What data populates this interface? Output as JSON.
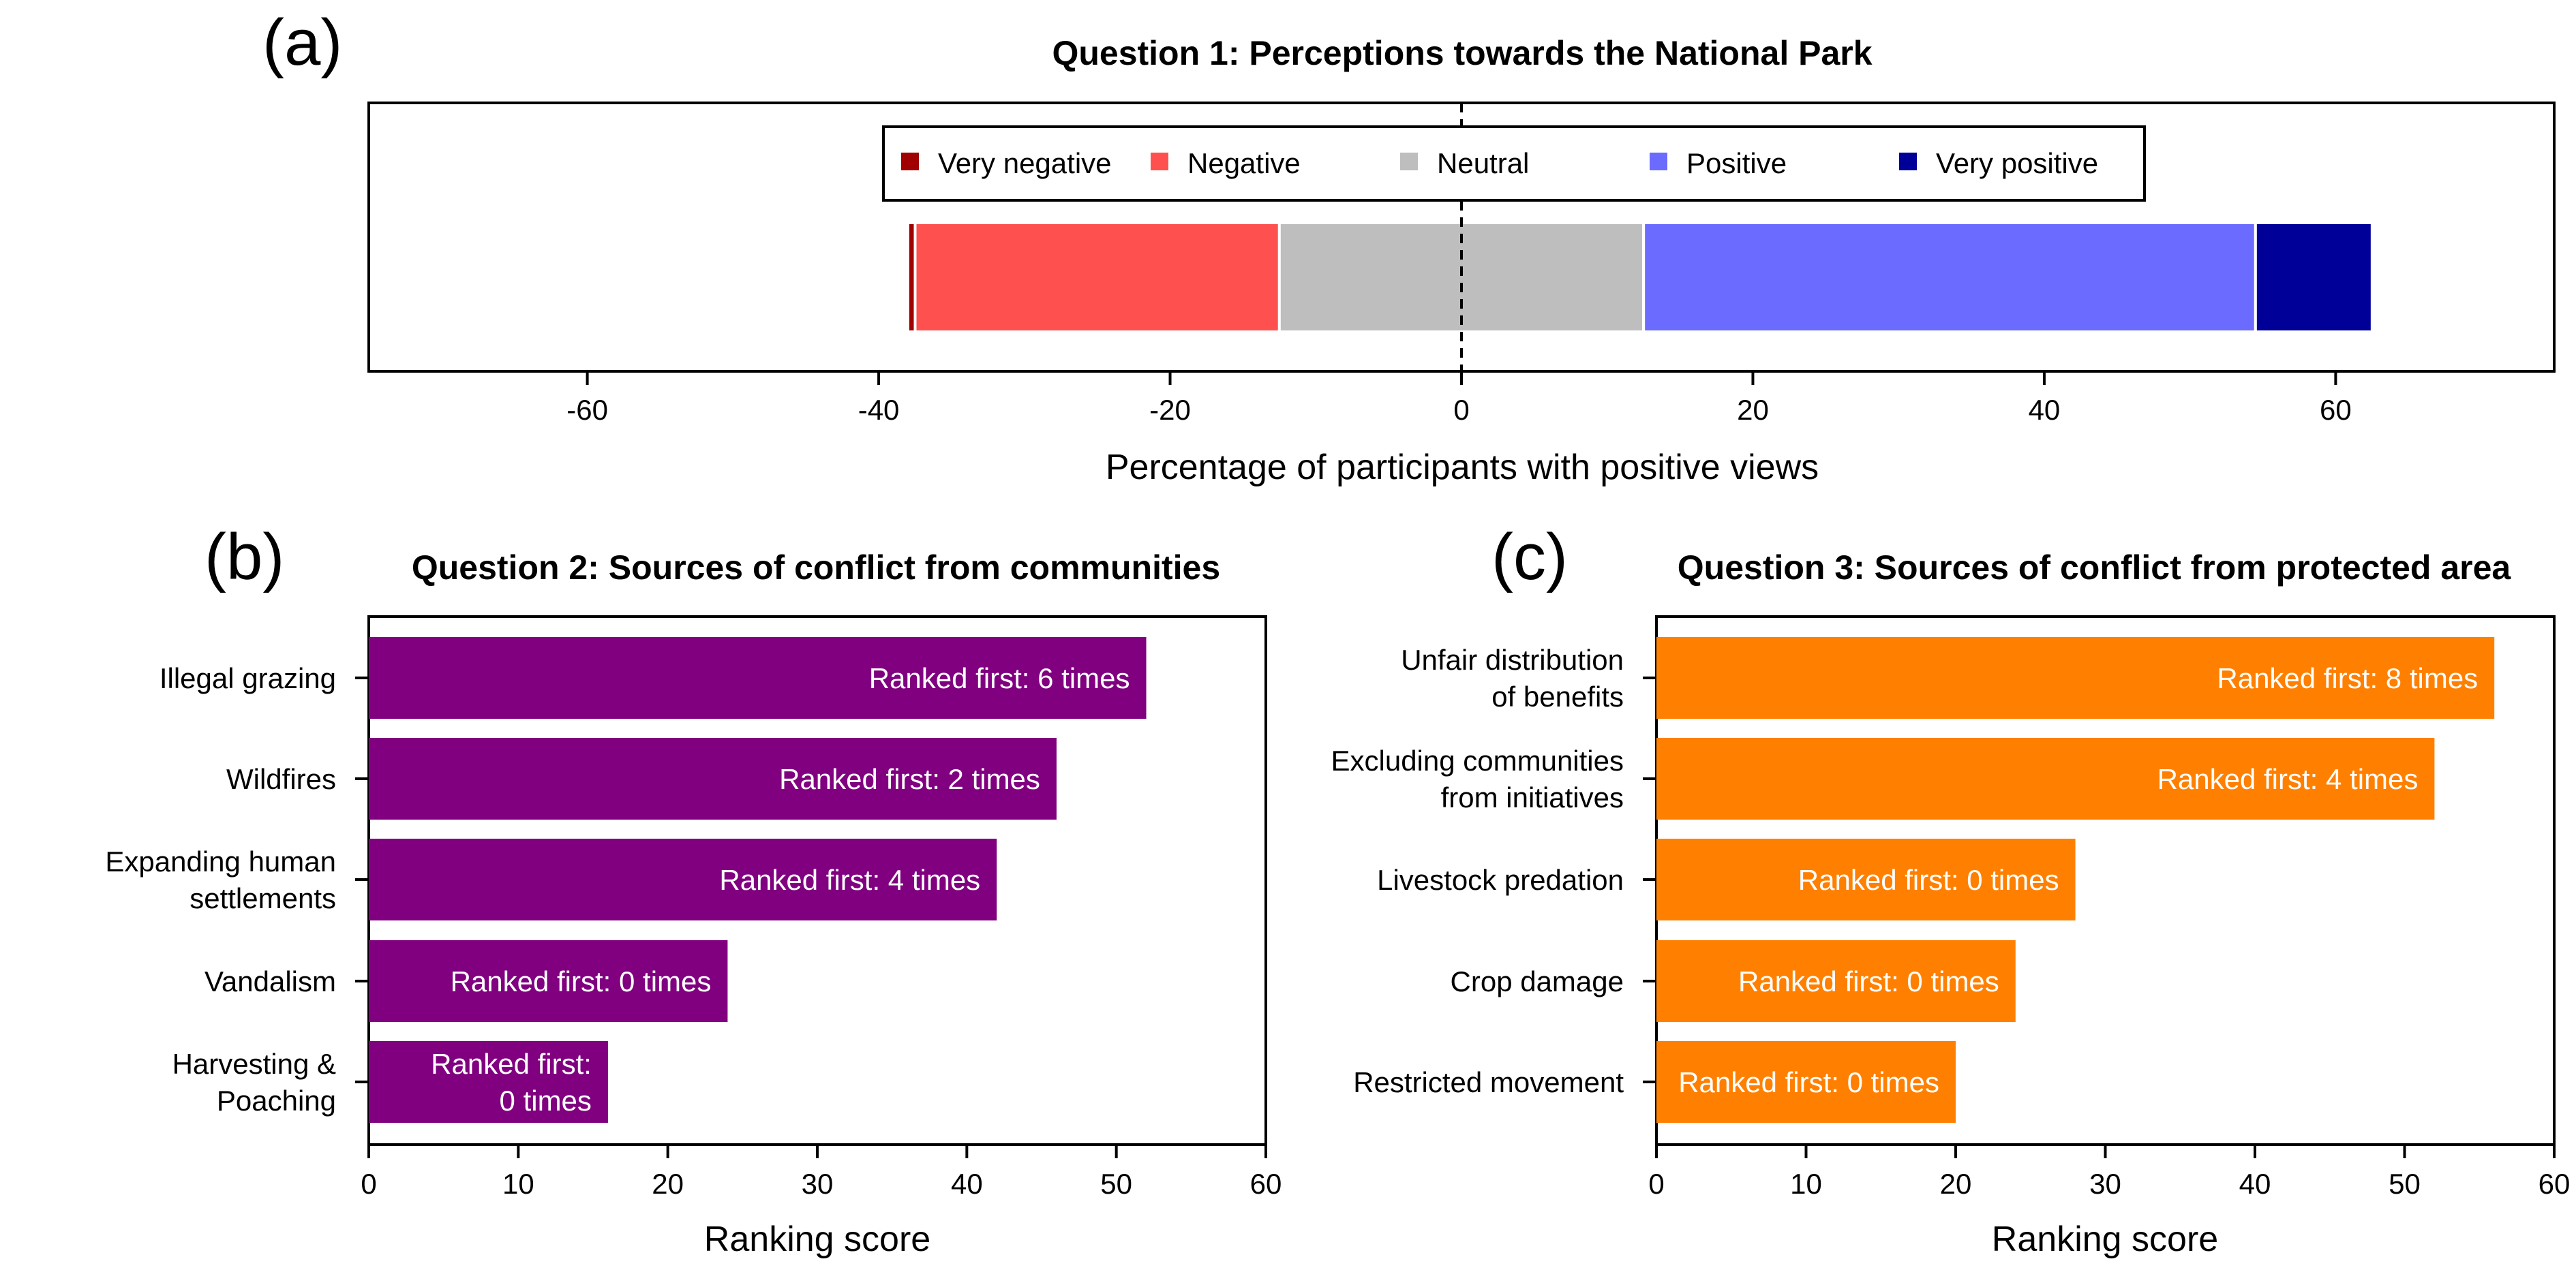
{
  "chart_data": [
    {
      "panel": "(a)",
      "type": "bar",
      "orientation": "horizontal",
      "stacked": "diverging",
      "title": "Question 1: Perceptions towards the National Park",
      "xlabel": "Percentage of participants with positive views",
      "ylabel": "",
      "xlim": [
        -75,
        75
      ],
      "xticks": [
        -60,
        -40,
        -20,
        0,
        20,
        40,
        60
      ],
      "reference_line": {
        "x": 0,
        "style": "dashed"
      },
      "legend": {
        "position": "top-center"
      },
      "series": [
        {
          "name": "Very negative",
          "color": "#a00000",
          "start": -38.0,
          "end": -37.5
        },
        {
          "name": "Negative",
          "color": "#ff5050",
          "start": -37.5,
          "end": -12.5
        },
        {
          "name": "Neutral",
          "color": "#bebebe",
          "start": -12.5,
          "end": 12.5
        },
        {
          "name": "Positive",
          "color": "#6b6bff",
          "start": 12.5,
          "end": 54.5
        },
        {
          "name": "Very positive",
          "color": "#000099",
          "start": 54.5,
          "end": 62.5
        }
      ]
    },
    {
      "panel": "(b)",
      "type": "bar",
      "orientation": "horizontal",
      "title": "Question 2: Sources of conflict from communities",
      "xlabel": "Ranking score",
      "ylabel": "",
      "xlim": [
        0,
        60
      ],
      "xticks": [
        0,
        10,
        20,
        30,
        40,
        50,
        60
      ],
      "color": "#800080",
      "bars": [
        {
          "category": [
            "Illegal grazing"
          ],
          "value": 52,
          "label": [
            "Ranked first: 6 times"
          ]
        },
        {
          "category": [
            "Wildfires"
          ],
          "value": 46,
          "label": [
            "Ranked first: 2 times"
          ]
        },
        {
          "category": [
            "Expanding human",
            "settlements"
          ],
          "value": 42,
          "label": [
            "Ranked first: 4 times"
          ]
        },
        {
          "category": [
            "Vandalism"
          ],
          "value": 24,
          "label": [
            "Ranked first: 0 times"
          ]
        },
        {
          "category": [
            "Harvesting &",
            "Poaching"
          ],
          "value": 16,
          "label": [
            "Ranked first:",
            "0 times"
          ]
        }
      ]
    },
    {
      "panel": "(c)",
      "type": "bar",
      "orientation": "horizontal",
      "title": "Question 3: Sources of conflict from protected area",
      "xlabel": "Ranking score",
      "ylabel": "",
      "xlim": [
        0,
        60
      ],
      "xticks": [
        0,
        10,
        20,
        30,
        40,
        50,
        60
      ],
      "color": "#ff8000",
      "bars": [
        {
          "category": [
            "Unfair distribution",
            "of benefits"
          ],
          "value": 56,
          "label": [
            "Ranked first: 8 times"
          ]
        },
        {
          "category": [
            "Excluding communities",
            "from initiatives"
          ],
          "value": 52,
          "label": [
            "Ranked first: 4 times"
          ]
        },
        {
          "category": [
            "Livestock predation"
          ],
          "value": 28,
          "label": [
            "Ranked first: 0 times"
          ]
        },
        {
          "category": [
            "Crop damage"
          ],
          "value": 24,
          "label": [
            "Ranked first: 0 times"
          ]
        },
        {
          "category": [
            "Restricted movement"
          ],
          "value": 20,
          "label": [
            "Ranked first: 0 times"
          ]
        }
      ]
    }
  ]
}
